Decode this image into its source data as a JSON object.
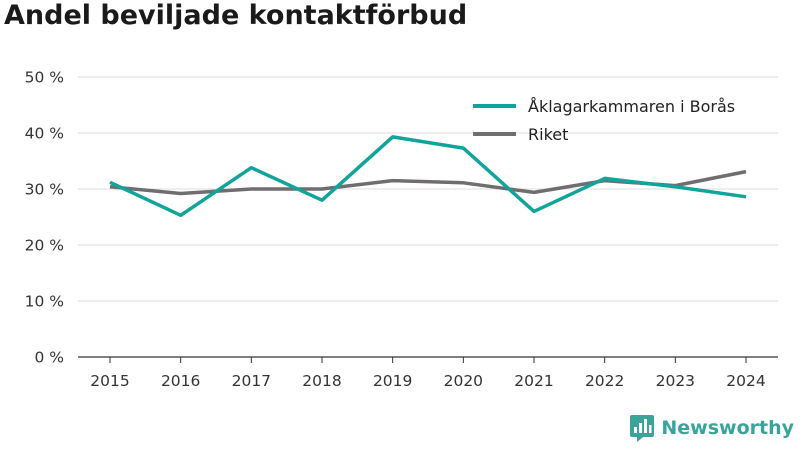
{
  "title": "Andel beviljade kontaktförbud",
  "brand": {
    "name": "Newsworthy",
    "icon": "newsworthy-logo-icon",
    "color": "#3aa39a"
  },
  "chart_data": {
    "type": "line",
    "title": "Andel beviljade kontaktförbud",
    "xlabel": "",
    "ylabel": "",
    "x": [
      "2015",
      "2016",
      "2017",
      "2018",
      "2019",
      "2020",
      "2021",
      "2022",
      "2023",
      "2024"
    ],
    "ylim": [
      0,
      50
    ],
    "yticks": [
      0,
      10,
      20,
      30,
      40,
      50
    ],
    "ytick_labels": [
      "0 %",
      "10 %",
      "20 %",
      "30 %",
      "40 %",
      "50 %"
    ],
    "grid": true,
    "legend_position": "top-right",
    "series": [
      {
        "name": "Åklagarkammaren i Borås",
        "color": "#10a49a",
        "values": [
          31.2,
          25.3,
          33.8,
          28.0,
          39.3,
          37.3,
          26.0,
          31.9,
          30.4,
          28.6
        ]
      },
      {
        "name": "Riket",
        "color": "#706d70",
        "values": [
          30.4,
          29.2,
          30.0,
          30.0,
          31.5,
          31.1,
          29.4,
          31.5,
          30.6,
          33.1
        ]
      }
    ]
  }
}
